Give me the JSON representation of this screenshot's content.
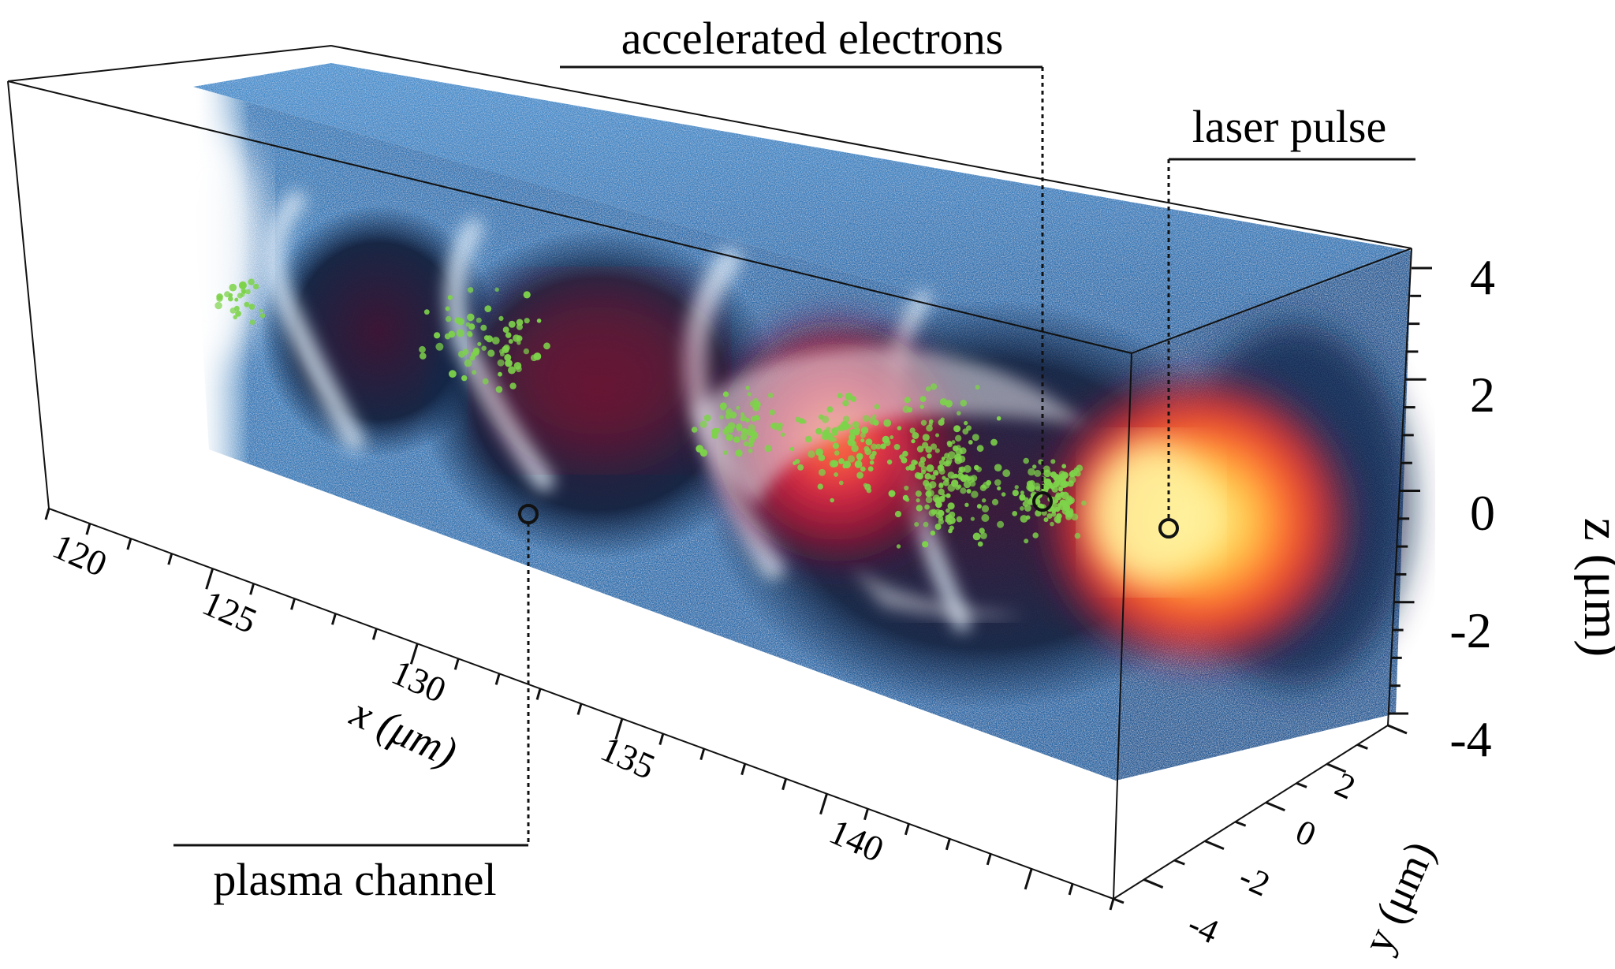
{
  "annotations": {
    "accelerated_electrons": "accelerated electrons",
    "laser_pulse": "laser pulse",
    "plasma_channel": "plasma channel"
  },
  "axes": {
    "x": {
      "label": "x (μm)",
      "ticks": [
        "120",
        "125",
        "130",
        "135",
        "140"
      ]
    },
    "y": {
      "label": "y (μm)",
      "ticks": [
        "2",
        "0",
        "-2",
        "-4"
      ]
    },
    "z": {
      "label": "z (μm)",
      "ticks": [
        "4",
        "2",
        "0",
        "-2",
        "-4"
      ]
    }
  },
  "colors": {
    "plasma": "#3f86c4",
    "plasma_dark": "#0c2a52",
    "wake_red": "#d8203a",
    "laser_core": "#ffe36a",
    "electrons": "#7dd34a"
  }
}
